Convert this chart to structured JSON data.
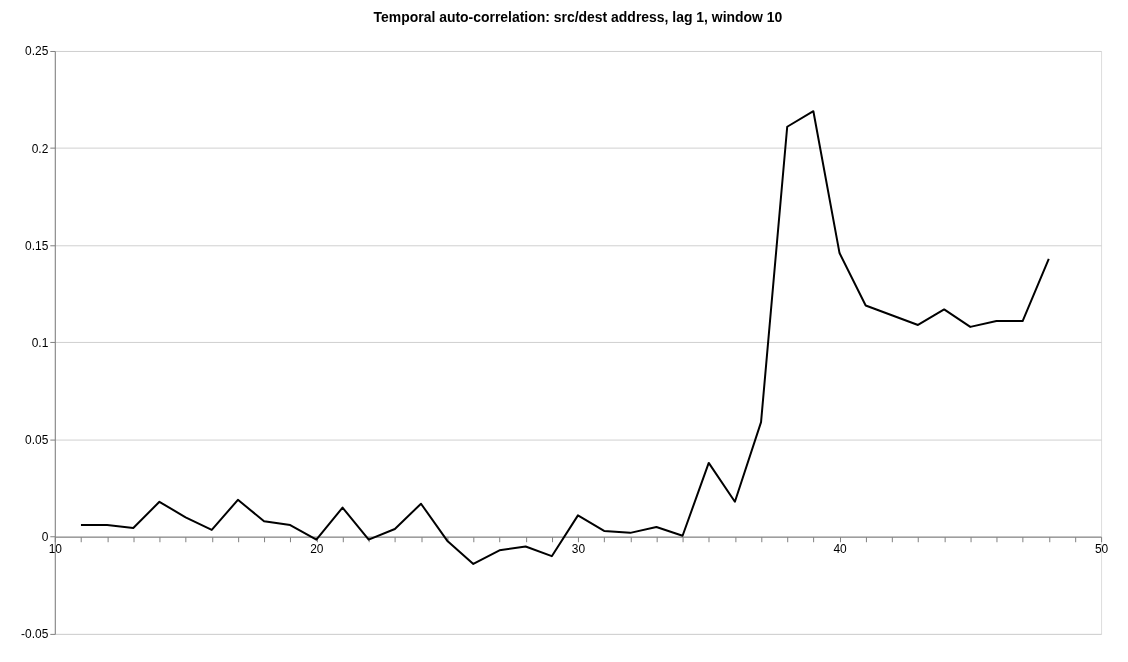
{
  "chart_data": {
    "type": "line",
    "title": "Temporal auto-correlation: src/dest address, lag 1, window 10",
    "x": [
      11,
      12,
      13,
      14,
      15,
      16,
      17,
      18,
      19,
      20,
      21,
      22,
      23,
      24,
      25,
      26,
      27,
      28,
      29,
      30,
      31,
      32,
      33,
      34,
      35,
      36,
      37,
      38,
      39,
      40,
      41,
      42,
      43,
      44,
      45,
      46,
      47,
      48
    ],
    "series": [
      {
        "color": "#000000",
        "values": [
          0.006,
          0.006,
          0.0045,
          0.018,
          0.01,
          0.0035,
          0.019,
          0.008,
          0.006,
          -0.0015,
          0.015,
          -0.0015,
          0.004,
          0.017,
          -0.002,
          -0.014,
          -0.007,
          -0.005,
          -0.01,
          0.011,
          0.003,
          0.002,
          0.005,
          0.0005,
          0.038,
          0.018,
          0.059,
          0.211,
          0.219,
          0.146,
          0.119,
          0.114,
          0.109,
          0.117,
          0.108,
          0.111,
          0.111,
          0.143
        ]
      }
    ],
    "xlim": [
      10,
      50
    ],
    "xticks": [
      10,
      {
        "value": 11,
        "label": null
      },
      {
        "value": 12,
        "label": null
      },
      {
        "value": 13,
        "label": null
      },
      {
        "value": 14,
        "label": null
      },
      {
        "value": 15,
        "label": null
      },
      {
        "value": 16,
        "label": null
      },
      {
        "value": 17,
        "label": null
      },
      {
        "value": 18,
        "label": null
      },
      {
        "value": 19,
        "label": null
      },
      20,
      {
        "value": 21,
        "label": null
      },
      {
        "value": 22,
        "label": null
      },
      {
        "value": 23,
        "label": null
      },
      {
        "value": 24,
        "label": null
      },
      {
        "value": 25,
        "label": null
      },
      {
        "value": 26,
        "label": null
      },
      {
        "value": 27,
        "label": null
      },
      {
        "value": 28,
        "label": null
      },
      {
        "value": 29,
        "label": null
      },
      30,
      {
        "value": 31,
        "label": null
      },
      {
        "value": 32,
        "label": null
      },
      {
        "value": 33,
        "label": null
      },
      {
        "value": 34,
        "label": null
      },
      {
        "value": 35,
        "label": null
      },
      {
        "value": 36,
        "label": null
      },
      {
        "value": 37,
        "label": null
      },
      {
        "value": 38,
        "label": null
      },
      {
        "value": 39,
        "label": null
      },
      40,
      {
        "value": 41,
        "label": null
      },
      {
        "value": 42,
        "label": null
      },
      {
        "value": 43,
        "label": null
      },
      {
        "value": 44,
        "label": null
      },
      {
        "value": 45,
        "label": null
      },
      {
        "value": 46,
        "label": null
      },
      {
        "value": 47,
        "label": null
      },
      {
        "value": 48,
        "label": null
      },
      {
        "value": 49,
        "label": null
      },
      50
    ],
    "ylim": [
      -0.05,
      0.25
    ],
    "yticks": [
      -0.05,
      0,
      0.05,
      0.1,
      0.15,
      0.2,
      0.25
    ],
    "grid": "y",
    "marker": "none",
    "line_style": "solid"
  }
}
